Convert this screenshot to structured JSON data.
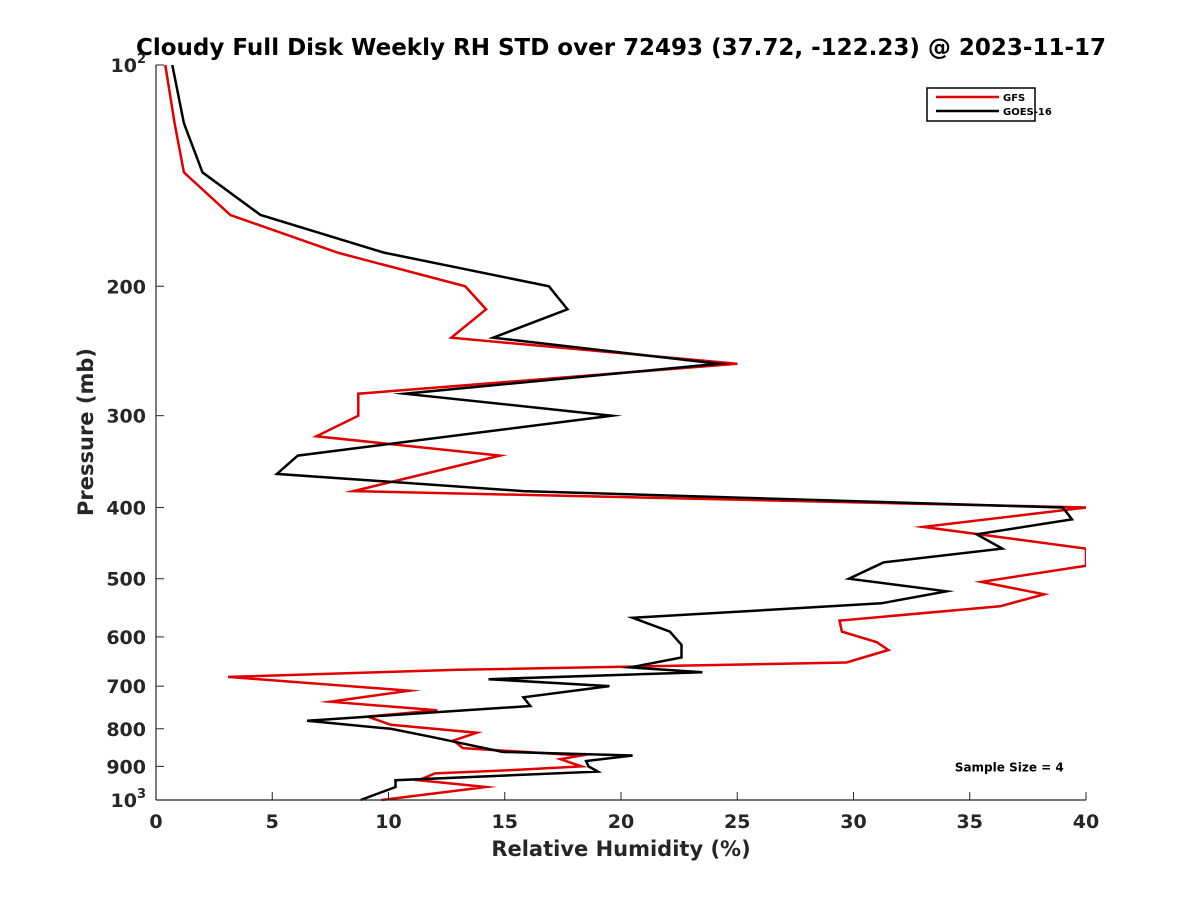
{
  "chart_data": {
    "type": "line",
    "title": "Cloudy Full Disk Weekly RH STD over 72493 (37.72, -122.23) @ 2023-11-17",
    "xlabel": "Relative Humidity (%)",
    "ylabel": "Pressure (mb)",
    "xlim": [
      0,
      40
    ],
    "ylim": [
      100,
      1000
    ],
    "y_scale": "log",
    "y_reversed": true,
    "grid": false,
    "legend_position": "top-right",
    "x_ticks": [
      {
        "value": 0,
        "label": "0"
      },
      {
        "value": 5,
        "label": "5"
      },
      {
        "value": 10,
        "label": "10"
      },
      {
        "value": 15,
        "label": "15"
      },
      {
        "value": 20,
        "label": "20"
      },
      {
        "value": 25,
        "label": "25"
      },
      {
        "value": 30,
        "label": "30"
      },
      {
        "value": 35,
        "label": "35"
      },
      {
        "value": 40,
        "label": "40"
      }
    ],
    "y_ticks": [
      {
        "value": 100,
        "base": "10",
        "exp": "2"
      },
      {
        "value": 200,
        "label": "200"
      },
      {
        "value": 300,
        "label": "300"
      },
      {
        "value": 400,
        "label": "400"
      },
      {
        "value": 500,
        "label": "500"
      },
      {
        "value": 600,
        "label": "600"
      },
      {
        "value": 700,
        "label": "700"
      },
      {
        "value": 800,
        "label": "800"
      },
      {
        "value": 900,
        "label": "900"
      },
      {
        "value": 1000,
        "base": "10",
        "exp": "3"
      }
    ],
    "series": [
      {
        "name": "GFS",
        "color": "#e00000",
        "points": [
          [
            0.4,
            100
          ],
          [
            0.8,
            120
          ],
          [
            1.2,
            140
          ],
          [
            3.2,
            160
          ],
          [
            7.8,
            180
          ],
          [
            13.3,
            200
          ],
          [
            14.2,
            215
          ],
          [
            12.7,
            235
          ],
          [
            25.0,
            255
          ],
          [
            8.7,
            280
          ],
          [
            8.7,
            300
          ],
          [
            6.9,
            320
          ],
          [
            14.8,
            340
          ],
          [
            8.5,
            380
          ],
          [
            40.0,
            400
          ],
          [
            33.0,
            425
          ],
          [
            40.0,
            455
          ],
          [
            40.0,
            480
          ],
          [
            35.5,
            505
          ],
          [
            38.2,
            525
          ],
          [
            36.3,
            545
          ],
          [
            29.4,
            570
          ],
          [
            29.5,
            590
          ],
          [
            31.0,
            610
          ],
          [
            31.5,
            625
          ],
          [
            29.7,
            650
          ],
          [
            13.0,
            665
          ],
          [
            3.1,
            680
          ],
          [
            10.9,
            710
          ],
          [
            7.5,
            735
          ],
          [
            12.1,
            755
          ],
          [
            9.1,
            770
          ],
          [
            10.1,
            790
          ],
          [
            13.8,
            810
          ],
          [
            12.8,
            830
          ],
          [
            13.2,
            850
          ],
          [
            18.3,
            870
          ],
          [
            17.4,
            880
          ],
          [
            18.3,
            900
          ],
          [
            15.5,
            910
          ],
          [
            12.0,
            920
          ],
          [
            11.3,
            940
          ],
          [
            14.2,
            960
          ],
          [
            9.7,
            1000
          ]
        ]
      },
      {
        "name": "GOES-16",
        "color": "#000000",
        "points": [
          [
            0.7,
            100
          ],
          [
            1.2,
            120
          ],
          [
            2.0,
            140
          ],
          [
            4.5,
            160
          ],
          [
            9.8,
            180
          ],
          [
            16.9,
            200
          ],
          [
            17.7,
            215
          ],
          [
            14.5,
            235
          ],
          [
            24.2,
            255
          ],
          [
            10.7,
            280
          ],
          [
            19.6,
            300
          ],
          [
            6.1,
            340
          ],
          [
            5.2,
            360
          ],
          [
            15.8,
            380
          ],
          [
            39.0,
            400
          ],
          [
            39.4,
            415
          ],
          [
            35.3,
            435
          ],
          [
            36.4,
            455
          ],
          [
            31.3,
            475
          ],
          [
            29.8,
            500
          ],
          [
            34.0,
            520
          ],
          [
            31.2,
            540
          ],
          [
            20.5,
            565
          ],
          [
            22.1,
            590
          ],
          [
            22.6,
            615
          ],
          [
            22.6,
            640
          ],
          [
            20.4,
            660
          ],
          [
            23.5,
            670
          ],
          [
            14.3,
            685
          ],
          [
            19.5,
            700
          ],
          [
            15.8,
            725
          ],
          [
            16.1,
            745
          ],
          [
            6.5,
            780
          ],
          [
            10.1,
            800
          ],
          [
            11.8,
            820
          ],
          [
            14.9,
            860
          ],
          [
            20.5,
            870
          ],
          [
            18.5,
            885
          ],
          [
            18.6,
            900
          ],
          [
            19.0,
            915
          ],
          [
            10.3,
            940
          ],
          [
            10.3,
            960
          ],
          [
            8.8,
            1000
          ]
        ]
      }
    ],
    "annotations": [
      {
        "text": "Sample Size = 4",
        "x": 36.7,
        "y": 900
      }
    ]
  }
}
